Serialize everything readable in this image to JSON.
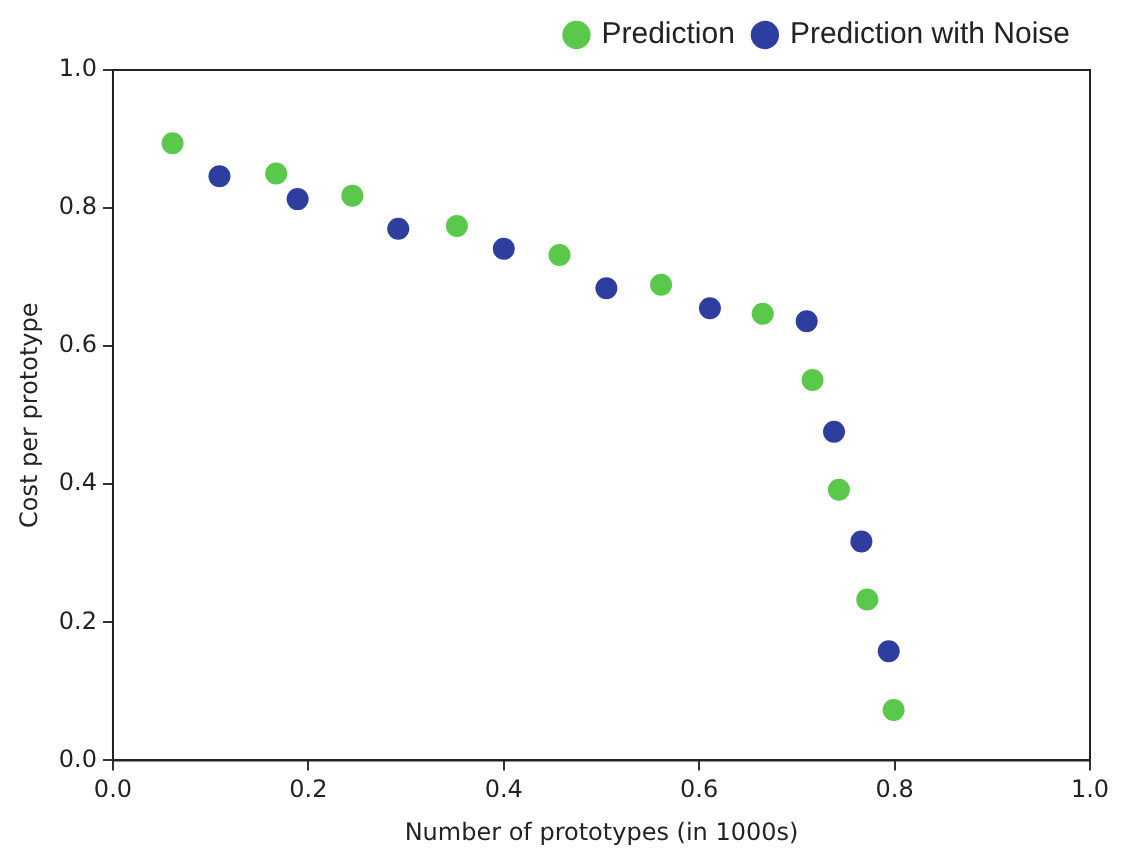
{
  "chart_data": {
    "type": "scatter",
    "xlabel": "Number of prototypes (in 1000s)",
    "ylabel": "Cost per prototype",
    "xlim": [
      0,
      1
    ],
    "ylim": [
      0,
      1
    ],
    "xticks": [
      {
        "value": 0,
        "label": "0.0"
      },
      {
        "value": 0.2,
        "label": "0.2"
      },
      {
        "value": 0.4,
        "label": "0.4"
      },
      {
        "value": 0.6,
        "label": "0.6"
      },
      {
        "value": 0.8,
        "label": "0.8"
      },
      {
        "value": 1,
        "label": "1.0"
      }
    ],
    "yticks": [
      {
        "value": 0,
        "label": "0.0"
      },
      {
        "value": 0.2,
        "label": "0.2"
      },
      {
        "value": 0.4,
        "label": "0.4"
      },
      {
        "value": 0.6,
        "label": "0.6"
      },
      {
        "value": 0.8,
        "label": "0.8"
      },
      {
        "value": 1,
        "label": "1.0"
      }
    ],
    "grid": false,
    "legend": "top right",
    "marker": "circle",
    "series": [
      {
        "name": "Prediction",
        "color": "#5ac84a",
        "x": [
          0.061,
          0.167,
          0.245,
          0.352,
          0.457,
          0.561,
          0.665,
          0.716,
          0.743,
          0.772,
          0.799
        ],
        "values": [
          0.894,
          0.85,
          0.818,
          0.774,
          0.732,
          0.689,
          0.647,
          0.551,
          0.392,
          0.233,
          0.073
        ]
      },
      {
        "name": "Prediction with Noise",
        "color": "#2e3e9e",
        "x": [
          0.109,
          0.189,
          0.292,
          0.4,
          0.505,
          0.611,
          0.71,
          0.738,
          0.766,
          0.794
        ],
        "values": [
          0.846,
          0.813,
          0.77,
          0.741,
          0.684,
          0.655,
          0.636,
          0.476,
          0.317,
          0.158
        ]
      }
    ]
  }
}
